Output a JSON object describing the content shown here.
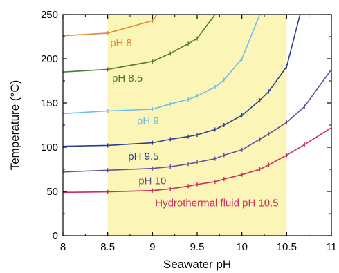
{
  "chart_data": {
    "type": "line",
    "xlabel": "Seawater pH",
    "ylabel": "Temperature (°C)",
    "xlim": [
      8,
      11
    ],
    "ylim": [
      0,
      250
    ],
    "x_ticks": [
      8,
      8.5,
      9,
      9.5,
      10,
      10.5,
      11
    ],
    "x_tick_labels": [
      "8",
      "8.5",
      "9",
      "9.5",
      "10",
      "10.5",
      "11"
    ],
    "y_ticks": [
      0,
      50,
      100,
      150,
      200,
      250
    ],
    "y_tick_labels": [
      "0",
      "50",
      "100",
      "150",
      "200",
      "250"
    ],
    "shaded_region": {
      "x_range": [
        8.5,
        10.5
      ],
      "color": "#fcf5b8"
    },
    "grid": false,
    "series": [
      {
        "name": "pH 8",
        "color": "#e08a3c",
        "label_at": [
          8.65,
          218
        ],
        "x": [
          8,
          8.5,
          9,
          9.05
        ],
        "y": [
          226,
          229,
          243,
          250
        ]
      },
      {
        "name": "pH 8.5",
        "color": "#4e7a2e",
        "label_at": [
          8.72,
          178
        ],
        "x": [
          8,
          8.5,
          9,
          9.2,
          9.4,
          9.5,
          9.7
        ],
        "y": [
          185,
          188,
          197,
          206,
          217,
          223,
          250
        ]
      },
      {
        "name": "pH 9",
        "color": "#6ebde8",
        "label_at": [
          8.95,
          130
        ],
        "x": [
          8,
          8.5,
          9,
          9.2,
          9.4,
          9.5,
          9.7,
          9.8,
          10,
          10.2
        ],
        "y": [
          138,
          141,
          143,
          149,
          154,
          158,
          168,
          176,
          200,
          250
        ]
      },
      {
        "name": "pH 9.5",
        "color": "#2b3f8f",
        "label_at": [
          8.9,
          90
        ],
        "x": [
          8,
          8.5,
          9,
          9.2,
          9.4,
          9.5,
          9.7,
          9.8,
          10,
          10.2,
          10.3,
          10.5,
          10.65
        ],
        "y": [
          101,
          102,
          105,
          109,
          112,
          114,
          120,
          125,
          136,
          153,
          163,
          191,
          250
        ]
      },
      {
        "name": "pH 10",
        "color": "#6a4c9c",
        "label_at": [
          9.0,
          62
        ],
        "x": [
          8,
          8.5,
          9,
          9.2,
          9.4,
          9.5,
          9.7,
          9.8,
          10,
          10.2,
          10.3,
          10.5,
          10.7,
          11
        ],
        "y": [
          72,
          74,
          76,
          78,
          81,
          83,
          87,
          91,
          97,
          109,
          115,
          128,
          146,
          188
        ]
      },
      {
        "name": "Hydrothermal fluid pH 10.5",
        "color": "#cc2d5e",
        "label_at": [
          9.72,
          37
        ],
        "x": [
          8,
          8.5,
          9,
          9.2,
          9.4,
          9.5,
          9.7,
          9.8,
          10,
          10.2,
          10.3,
          10.5,
          10.7,
          11
        ],
        "y": [
          49,
          49.5,
          51,
          53,
          56,
          58,
          61,
          64,
          69,
          75,
          80,
          91,
          103,
          122
        ]
      }
    ]
  }
}
